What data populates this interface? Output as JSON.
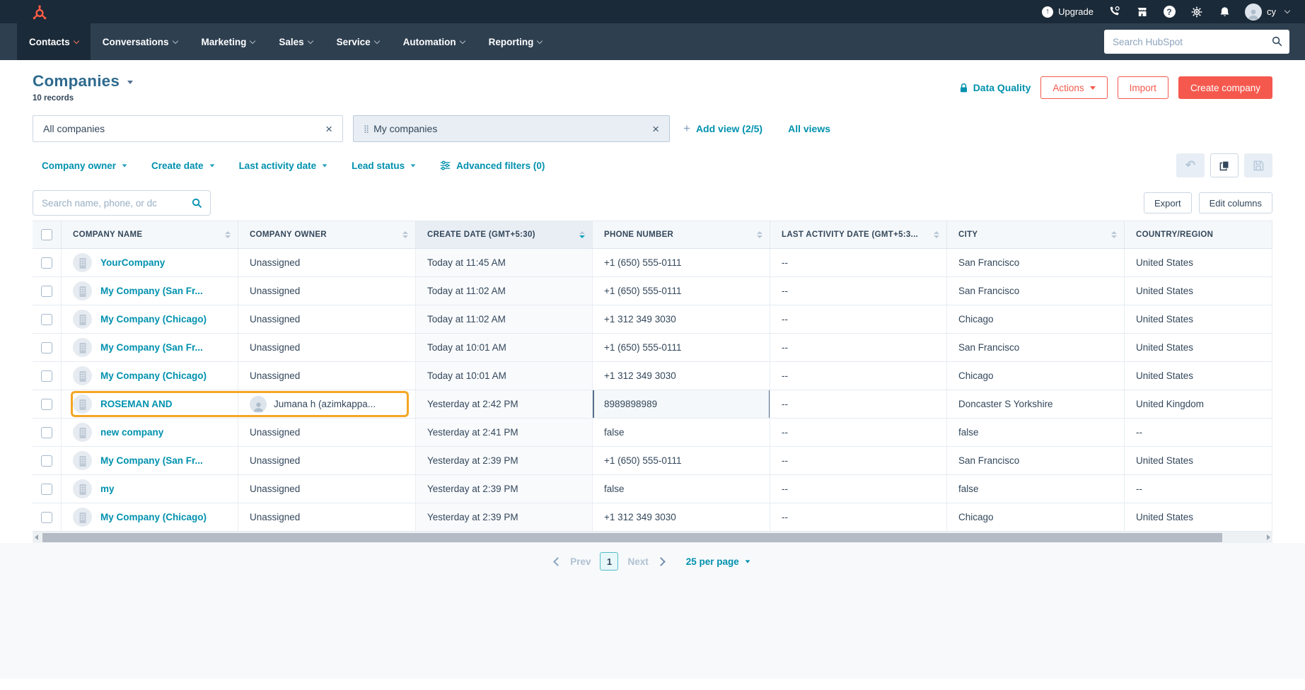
{
  "topbar": {
    "nav": [
      {
        "label": "Contacts",
        "active": true
      },
      {
        "label": "Conversations",
        "active": false
      },
      {
        "label": "Marketing",
        "active": false
      },
      {
        "label": "Sales",
        "active": false
      },
      {
        "label": "Service",
        "active": false
      },
      {
        "label": "Automation",
        "active": false
      },
      {
        "label": "Reporting",
        "active": false
      }
    ],
    "upgrade_label": "Upgrade",
    "user": "cy",
    "search_placeholder": "Search HubSpot"
  },
  "header": {
    "title": "Companies",
    "record_count": "10 records",
    "data_quality_label": "Data Quality",
    "actions_label": "Actions",
    "import_label": "Import",
    "create_label": "Create company"
  },
  "views": {
    "tabs": [
      {
        "label": "All companies",
        "draggable": false
      },
      {
        "label": "My companies",
        "draggable": true
      }
    ],
    "add_view_label": "Add view (2/5)",
    "all_views_label": "All views"
  },
  "filters": {
    "items": [
      "Company owner",
      "Create date",
      "Last activity date",
      "Lead status"
    ],
    "advanced_label": "Advanced filters (0)"
  },
  "toolbar": {
    "search_placeholder": "Search name, phone, or dc",
    "export_label": "Export",
    "edit_columns_label": "Edit columns"
  },
  "table": {
    "columns": [
      {
        "label": "COMPANY NAME",
        "sortable": true,
        "sorted": ""
      },
      {
        "label": "COMPANY OWNER",
        "sortable": true,
        "sorted": ""
      },
      {
        "label": "CREATE DATE (GMT+5:30)",
        "sortable": true,
        "sorted": "desc"
      },
      {
        "label": "PHONE NUMBER",
        "sortable": true,
        "sorted": ""
      },
      {
        "label": "LAST ACTIVITY DATE (GMT+5:3...",
        "sortable": true,
        "sorted": ""
      },
      {
        "label": "CITY",
        "sortable": true,
        "sorted": ""
      },
      {
        "label": "COUNTRY/REGION",
        "sortable": false,
        "sorted": ""
      }
    ],
    "rows": [
      {
        "name": "YourCompany",
        "owner": "Unassigned",
        "owner_has_avatar": false,
        "created": "Today at 11:45 AM",
        "phone": "+1 (650) 555-0111",
        "phone_editing": false,
        "last_activity": "--",
        "city": "San Francisco",
        "country": "United States",
        "highlighted": false
      },
      {
        "name": "My Company (San Fr...",
        "owner": "Unassigned",
        "owner_has_avatar": false,
        "created": "Today at 11:02 AM",
        "phone": "+1 (650) 555-0111",
        "phone_editing": false,
        "last_activity": "--",
        "city": "San Francisco",
        "country": "United States",
        "highlighted": false
      },
      {
        "name": "My Company (Chicago)",
        "owner": "Unassigned",
        "owner_has_avatar": false,
        "created": "Today at 11:02 AM",
        "phone": "+1 312 349 3030",
        "phone_editing": false,
        "last_activity": "--",
        "city": "Chicago",
        "country": "United States",
        "highlighted": false
      },
      {
        "name": "My Company (San Fr...",
        "owner": "Unassigned",
        "owner_has_avatar": false,
        "created": "Today at 10:01 AM",
        "phone": "+1 (650) 555-0111",
        "phone_editing": false,
        "last_activity": "--",
        "city": "San Francisco",
        "country": "United States",
        "highlighted": false
      },
      {
        "name": "My Company (Chicago)",
        "owner": "Unassigned",
        "owner_has_avatar": false,
        "created": "Today at 10:01 AM",
        "phone": "+1 312 349 3030",
        "phone_editing": false,
        "last_activity": "--",
        "city": "Chicago",
        "country": "United States",
        "highlighted": false
      },
      {
        "name": "ROSEMAN AND",
        "owner": "Jumana h (azimkappa...",
        "owner_has_avatar": true,
        "created": "Yesterday at 2:42 PM",
        "phone": "8989898989",
        "phone_editing": true,
        "last_activity": "--",
        "city": "Doncaster S Yorkshire",
        "country": "United Kingdom",
        "highlighted": true
      },
      {
        "name": "new company",
        "owner": "Unassigned",
        "owner_has_avatar": false,
        "created": "Yesterday at 2:41 PM",
        "phone": "false",
        "phone_editing": false,
        "last_activity": "--",
        "city": "false",
        "country": "--",
        "highlighted": false
      },
      {
        "name": "My Company (San Fr...",
        "owner": "Unassigned",
        "owner_has_avatar": false,
        "created": "Yesterday at 2:39 PM",
        "phone": "+1 (650) 555-0111",
        "phone_editing": false,
        "last_activity": "--",
        "city": "San Francisco",
        "country": "United States",
        "highlighted": false
      },
      {
        "name": "my",
        "owner": "Unassigned",
        "owner_has_avatar": false,
        "created": "Yesterday at 2:39 PM",
        "phone": "false",
        "phone_editing": false,
        "last_activity": "--",
        "city": "false",
        "country": "--",
        "highlighted": false
      },
      {
        "name": "My Company (Chicago)",
        "owner": "Unassigned",
        "owner_has_avatar": false,
        "created": "Yesterday at 2:39 PM",
        "phone": "+1 312 349 3030",
        "phone_editing": false,
        "last_activity": "--",
        "city": "Chicago",
        "country": "United States",
        "highlighted": false
      }
    ]
  },
  "pagination": {
    "prev_label": "Prev",
    "page": "1",
    "next_label": "Next",
    "per_page_label": "25 per page"
  },
  "colors": {
    "topbar_dark": "#1b2a38",
    "topbar_nav": "#2e3f50",
    "coral": "#f5594e",
    "teal_link": "#0091ae",
    "navy_text": "#33475b",
    "highlight_orange": "#f5a623",
    "edit_border": "#546f8f",
    "header_bg": "#f5f8fa"
  }
}
